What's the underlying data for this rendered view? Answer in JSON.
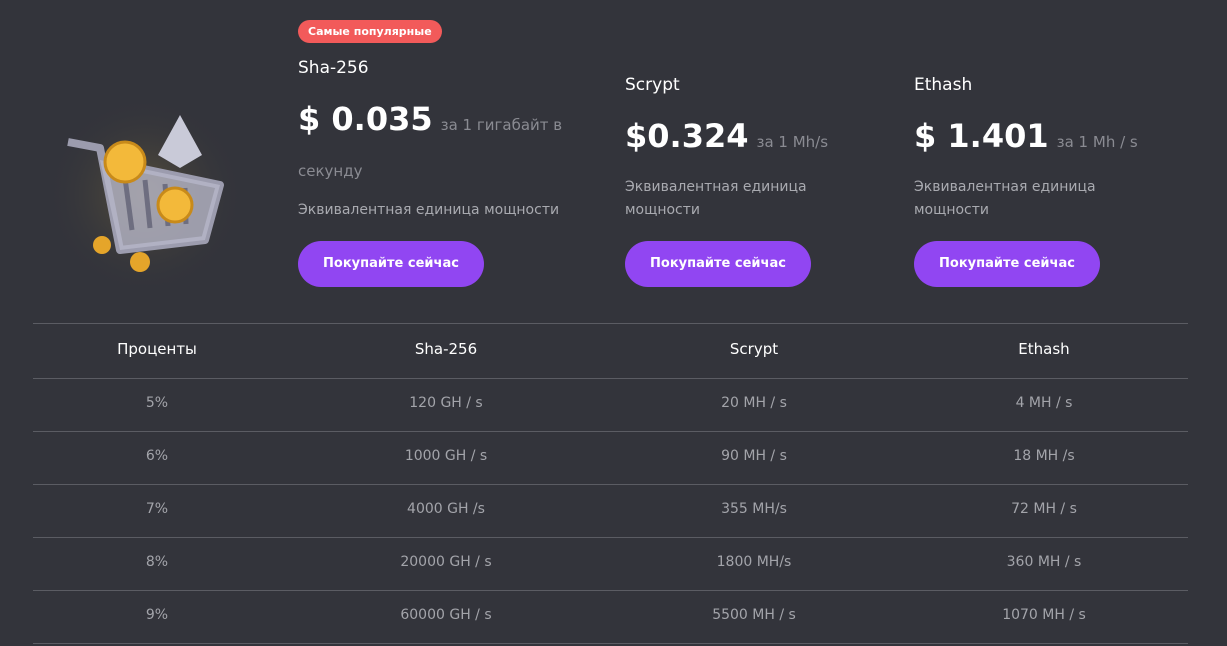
{
  "badge": "Самые популярные",
  "plans": [
    {
      "name": "Sha-256",
      "price": "$ 0.035",
      "unit": "за 1 гигабайт в секунду",
      "description": "Эквивалентная единица мощности",
      "button": "Покупайте сейчас"
    },
    {
      "name": "Scrypt",
      "price": "$0.324",
      "unit": "за 1 Mh/s",
      "description": "Эквивалентная единица мощности",
      "button": "Покупайте сейчас"
    },
    {
      "name": "Ethash",
      "price": "$ 1.401",
      "unit": "за 1 Mh / s",
      "description": "Эквивалентная единица мощности",
      "button": "Покупайте сейчас"
    }
  ],
  "table": {
    "header": [
      "Проценты",
      "Sha-256",
      "Scrypt",
      "Ethash"
    ],
    "rows": [
      [
        "5%",
        "120 GH / s",
        "20 MH / s",
        "4 MH / s"
      ],
      [
        "6%",
        "1000 GH / s",
        "90 MH / s",
        "18 MH /s"
      ],
      [
        "7%",
        "4000 GH /s",
        "355 MH/s",
        "72 MH / s"
      ],
      [
        "8%",
        "20000 GH / s",
        "1800 MH/s",
        "360 MH / s"
      ],
      [
        "9%",
        "60000 GH / s",
        "5500 MH / s",
        "1070 MH / s"
      ]
    ]
  }
}
